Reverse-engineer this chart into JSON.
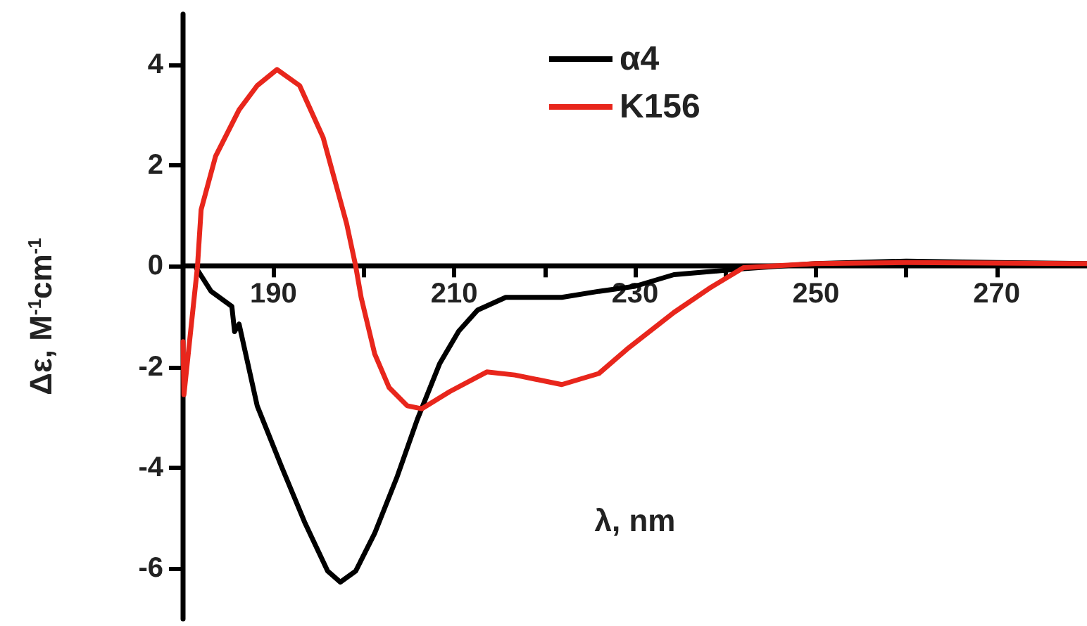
{
  "chart_data": {
    "type": "line",
    "xlabel": "λ, nm",
    "ylabel": "Δε, M$^{-1}$cm$^{-1}$",
    "xlim": [
      180,
      280
    ],
    "xticks": [
      190,
      {
        "value": 200,
        "label": null
      },
      210,
      {
        "value": 220,
        "label": null
      },
      230,
      {
        "value": 240,
        "label": null
      },
      250,
      {
        "value": 260,
        "label": null
      },
      270
    ],
    "ylim": [
      -7,
      5
    ],
    "yticks": [
      -6,
      -4,
      -2,
      0,
      2,
      4
    ],
    "legend": "top right",
    "grid": false,
    "marker": "none",
    "line_style": "solid",
    "series": [
      {
        "name": "α4",
        "color": "#000000",
        "x": [
          181.5,
          183.1,
          185.4,
          185.7,
          186.2,
          188.2,
          190.9,
          193.5,
          196,
          197.4,
          199.1,
          201.2,
          203.7,
          205.9,
          208.4,
          210.5,
          212.6,
          215.7,
          221.9,
          226,
          230,
          234.3,
          242,
          250,
          260,
          270,
          280
        ],
        "values": [
          -0.05,
          -0.5,
          -0.8,
          -1.3,
          -1.15,
          -2.77,
          -3.98,
          -5.1,
          -6.05,
          -6.27,
          -6.05,
          -5.3,
          -4.17,
          -3.05,
          -1.93,
          -1.29,
          -0.87,
          -0.62,
          -0.62,
          -0.5,
          -0.4,
          -0.17,
          -0.05,
          0.05,
          0.1,
          0.07,
          0.05
        ]
      },
      {
        "name": "K156",
        "color": "#e8261c",
        "x": [
          180,
          180.1,
          181.6,
          182,
          183.6,
          186.2,
          188.2,
          190.4,
          192.9,
          195.5,
          198.1,
          199.1,
          199.7,
          201.2,
          202.8,
          204.8,
          206.4,
          209.5,
          213.6,
          216.7,
          221.9,
          226,
          229.1,
          234.3,
          238.4,
          242,
          250,
          260,
          280
        ],
        "values": [
          -1.5,
          -2.55,
          0,
          1.12,
          2.18,
          3.1,
          3.58,
          3.9,
          3.58,
          2.55,
          0.84,
          0,
          -0.62,
          -1.74,
          -2.41,
          -2.77,
          -2.83,
          -2.49,
          -2.1,
          -2.16,
          -2.35,
          -2.13,
          -1.65,
          -0.92,
          -0.42,
          -0.03,
          0.05,
          0.07,
          0.05
        ]
      }
    ]
  }
}
